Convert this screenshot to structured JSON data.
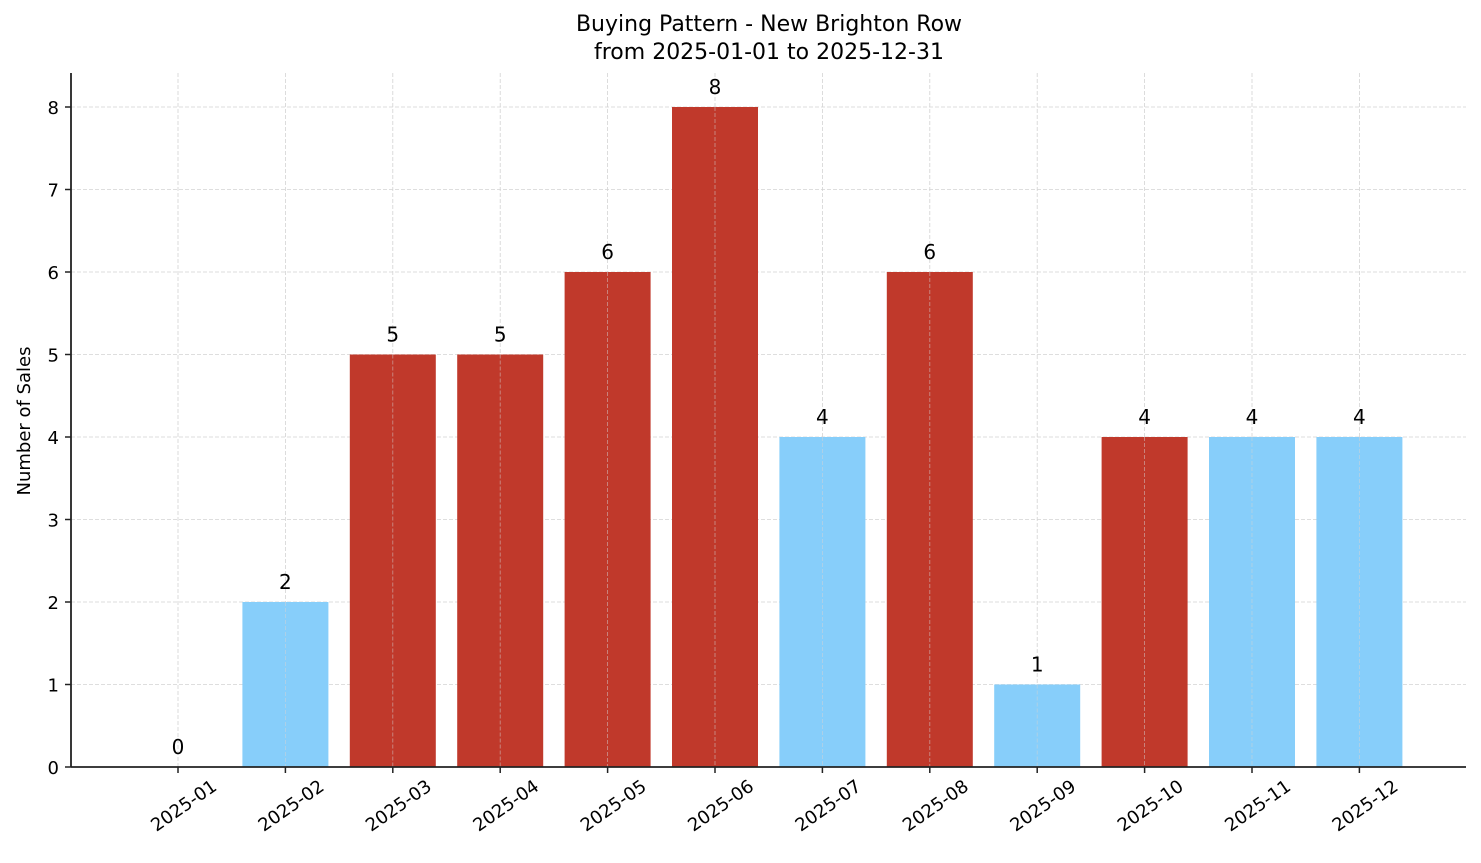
{
  "chart_data": {
    "type": "bar",
    "title": "Buying Pattern - New Brighton Row",
    "subtitle": "from 2025-01-01 to 2025-12-31",
    "xlabel": "",
    "ylabel": "Number of Sales",
    "categories": [
      "2025-01",
      "2025-02",
      "2025-03",
      "2025-04",
      "2025-05",
      "2025-06",
      "2025-07",
      "2025-08",
      "2025-09",
      "2025-10",
      "2025-11",
      "2025-12"
    ],
    "values": [
      0,
      2,
      5,
      5,
      6,
      8,
      4,
      6,
      1,
      4,
      4,
      4
    ],
    "bar_colors": [
      "#87CEFA",
      "#87CEFA",
      "#C0392B",
      "#C0392B",
      "#C0392B",
      "#C0392B",
      "#87CEFA",
      "#C0392B",
      "#87CEFA",
      "#C0392B",
      "#87CEFA",
      "#87CEFA"
    ],
    "data_labels": [
      "0",
      "2",
      "5",
      "5",
      "6",
      "8",
      "4",
      "6",
      "1",
      "4",
      "4",
      "4"
    ],
    "yticks": [
      0,
      1,
      2,
      3,
      4,
      5,
      6,
      7,
      8
    ],
    "ylim": [
      0,
      8.4
    ],
    "grid": true,
    "legend": null,
    "colors": {
      "high": "#C0392B",
      "low": "#87CEFA",
      "axis": "#222222",
      "grid": "#d3d3d3"
    }
  }
}
